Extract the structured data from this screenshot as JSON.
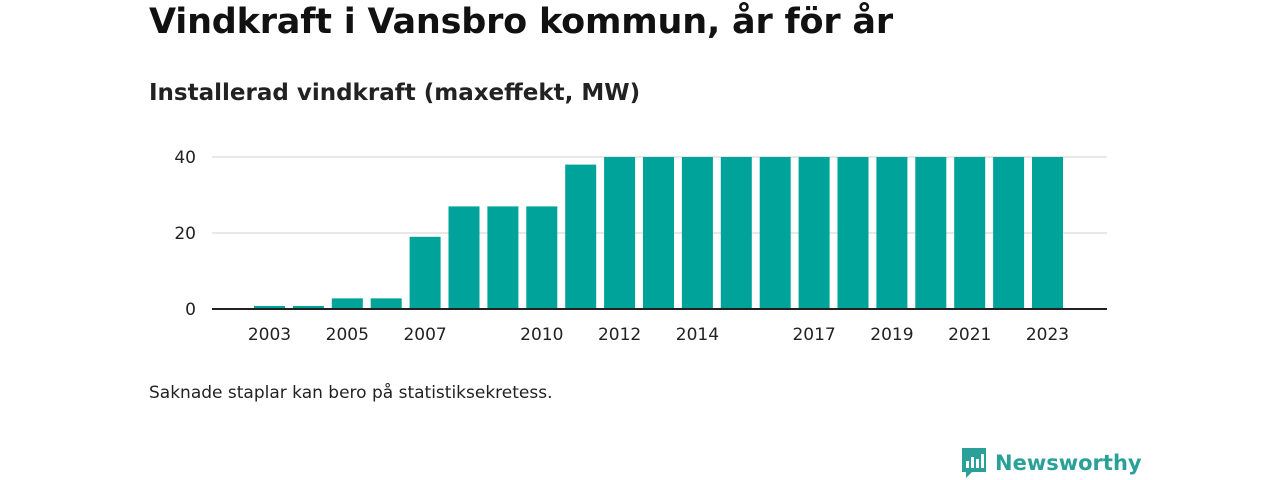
{
  "header": {
    "title": "Vindkraft i Vansbro kommun, år för år",
    "subtitle": "Installerad vindkraft (maxeffekt, MW)"
  },
  "footnote": "Saknade staplar kan bero på statistiksekretess.",
  "brand": {
    "name": "Newsworthy",
    "icon": "newsworthy-logo-icon"
  },
  "colors": {
    "bar": "#00a39a",
    "grid": "#d9d9d9",
    "axis": "#222222",
    "brand": "#2aa198"
  },
  "chart_data": {
    "type": "bar",
    "title": "Vindkraft i Vansbro kommun, år för år",
    "subtitle": "Installerad vindkraft (maxeffekt, MW)",
    "xlabel": "",
    "ylabel": "",
    "categories": [
      2003,
      2004,
      2005,
      2006,
      2007,
      2008,
      2009,
      2010,
      2011,
      2012,
      2013,
      2014,
      2015,
      2016,
      2017,
      2018,
      2019,
      2020,
      2021,
      2022,
      2023
    ],
    "values": [
      0.8,
      0.8,
      2.8,
      2.8,
      19,
      27,
      27,
      27,
      38,
      40,
      40,
      40,
      40,
      40,
      40,
      40,
      40,
      40,
      40,
      40,
      40
    ],
    "x_tick_labels": [
      "2003",
      "2005",
      "2007",
      "2010",
      "2012",
      "2014",
      "2017",
      "2019",
      "2021",
      "2023"
    ],
    "y_ticks": [
      0,
      20,
      40
    ],
    "ylim": [
      0,
      40
    ],
    "grid": true
  }
}
